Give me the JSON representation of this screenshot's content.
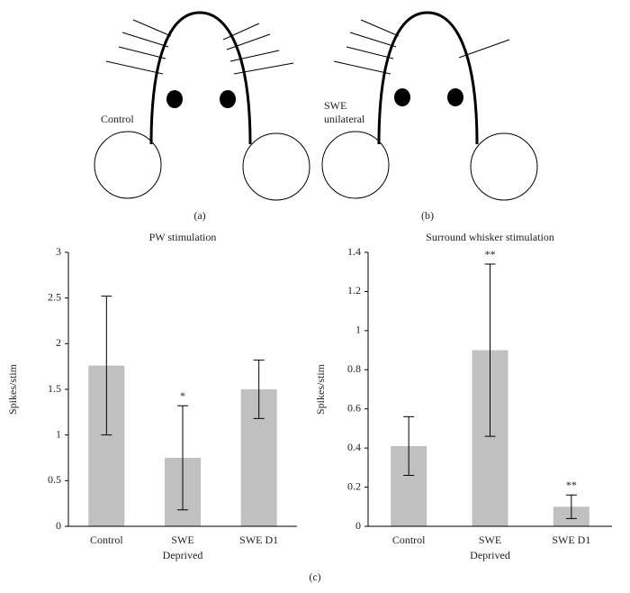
{
  "figure": {
    "panel_a": {
      "label": "(a)",
      "text": "Control"
    },
    "panel_b": {
      "label": "(b)",
      "text": [
        "SWE",
        "unilateral"
      ]
    },
    "panel_c": {
      "label": "(c)"
    }
  },
  "chart_data": [
    {
      "type": "bar",
      "title": "PW stimulation",
      "x_label": "Deprived",
      "y_label": "Spikes/stim",
      "categories": [
        "Control",
        "SWE",
        "SWE D1"
      ],
      "values": [
        1.76,
        0.75,
        1.5
      ],
      "errors": [
        0.76,
        0.57,
        0.32
      ],
      "annotations": [
        null,
        "*",
        null
      ],
      "color": "#c0c0c0",
      "ylim": [
        0,
        3
      ],
      "yticks": [
        0,
        0.5,
        1,
        1.5,
        2,
        2.5,
        3
      ]
    },
    {
      "type": "bar",
      "title": "Surround whisker stimulation",
      "x_label": "Deprived",
      "y_label": "Spikes/stim",
      "categories": [
        "Control",
        "SWE",
        "SWE D1"
      ],
      "values": [
        0.41,
        0.9,
        0.1
      ],
      "errors": [
        0.15,
        0.44,
        0.06
      ],
      "annotations": [
        null,
        "**",
        "**"
      ],
      "color": "#c0c0c0",
      "ylim": [
        0,
        1.4
      ],
      "yticks": [
        0,
        0.2,
        0.4,
        0.6,
        0.8,
        1,
        1.2,
        1.4
      ]
    }
  ]
}
